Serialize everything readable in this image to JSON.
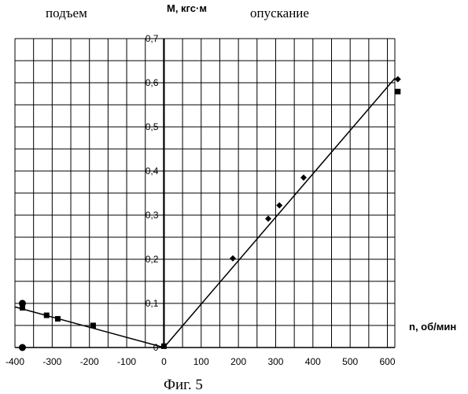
{
  "chart_data": {
    "type": "scatter",
    "xlim": [
      -400,
      620
    ],
    "ylim": [
      0,
      0.7
    ],
    "x_ticks": [
      -400,
      -300,
      -200,
      -100,
      0,
      100,
      200,
      300,
      400,
      500,
      600
    ],
    "y_ticks": [
      0,
      0.1,
      0.2,
      0.3,
      0.4,
      0.5,
      0.6,
      0.7
    ],
    "x_tick_labels": [
      "-400",
      "-300",
      "-200",
      "-100",
      "0",
      "100",
      "200",
      "300",
      "400",
      "500",
      "600"
    ],
    "y_tick_labels": [
      "0",
      "0,1",
      "0,2",
      "0,3",
      "0,4",
      "0,5",
      "0,6",
      "0,7"
    ],
    "xlabel": "n, об/мин",
    "ylabel": "М, кгс·м",
    "annotations": {
      "left": "подъем",
      "right": "опускание"
    },
    "caption": "Фиг. 5",
    "grid": true,
    "series": [
      {
        "marker": "diamond",
        "x": [
          185,
          280,
          310,
          375,
          628
        ],
        "y": [
          0.202,
          0.292,
          0.322,
          0.385,
          0.608
        ]
      },
      {
        "marker": "square",
        "x": [
          -380,
          -315,
          -285,
          -190,
          0,
          628
        ],
        "y": [
          0.09,
          0.073,
          0.065,
          0.05,
          0.003,
          0.58
        ]
      },
      {
        "marker": "circle",
        "x": [
          -380,
          -380
        ],
        "y": [
          0.1,
          0.0
        ]
      }
    ],
    "lines": [
      {
        "x": [
          -400,
          0
        ],
        "y": [
          0.092,
          0.0
        ]
      },
      {
        "x": [
          0,
          620
        ],
        "y": [
          0.0,
          0.61
        ]
      }
    ]
  }
}
